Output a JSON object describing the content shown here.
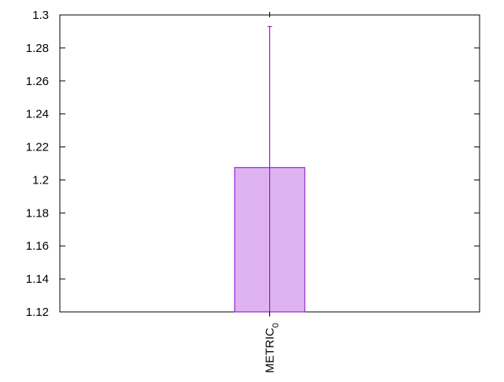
{
  "chart_data": {
    "type": "bar",
    "title": "",
    "xlabel": "",
    "ylabel": "",
    "categories": [
      "METRIC0"
    ],
    "category_labels": [
      {
        "base": "METRIC",
        "subscript": "0"
      }
    ],
    "values": [
      1.2075
    ],
    "error_upper": [
      1.293
    ],
    "error_lower": [
      1.12
    ],
    "ylim": [
      1.12,
      1.3
    ],
    "yticks": [
      "1.12",
      "1.14",
      "1.16",
      "1.18",
      "1.2",
      "1.22",
      "1.24",
      "1.26",
      "1.28",
      "1.3"
    ],
    "grid": false,
    "legend": "none",
    "colors": {
      "bar_fill": "#dfb3f1",
      "bar_stroke": "#8a00c4",
      "error_bar": "#8a00c4",
      "axis": "#000000"
    }
  }
}
